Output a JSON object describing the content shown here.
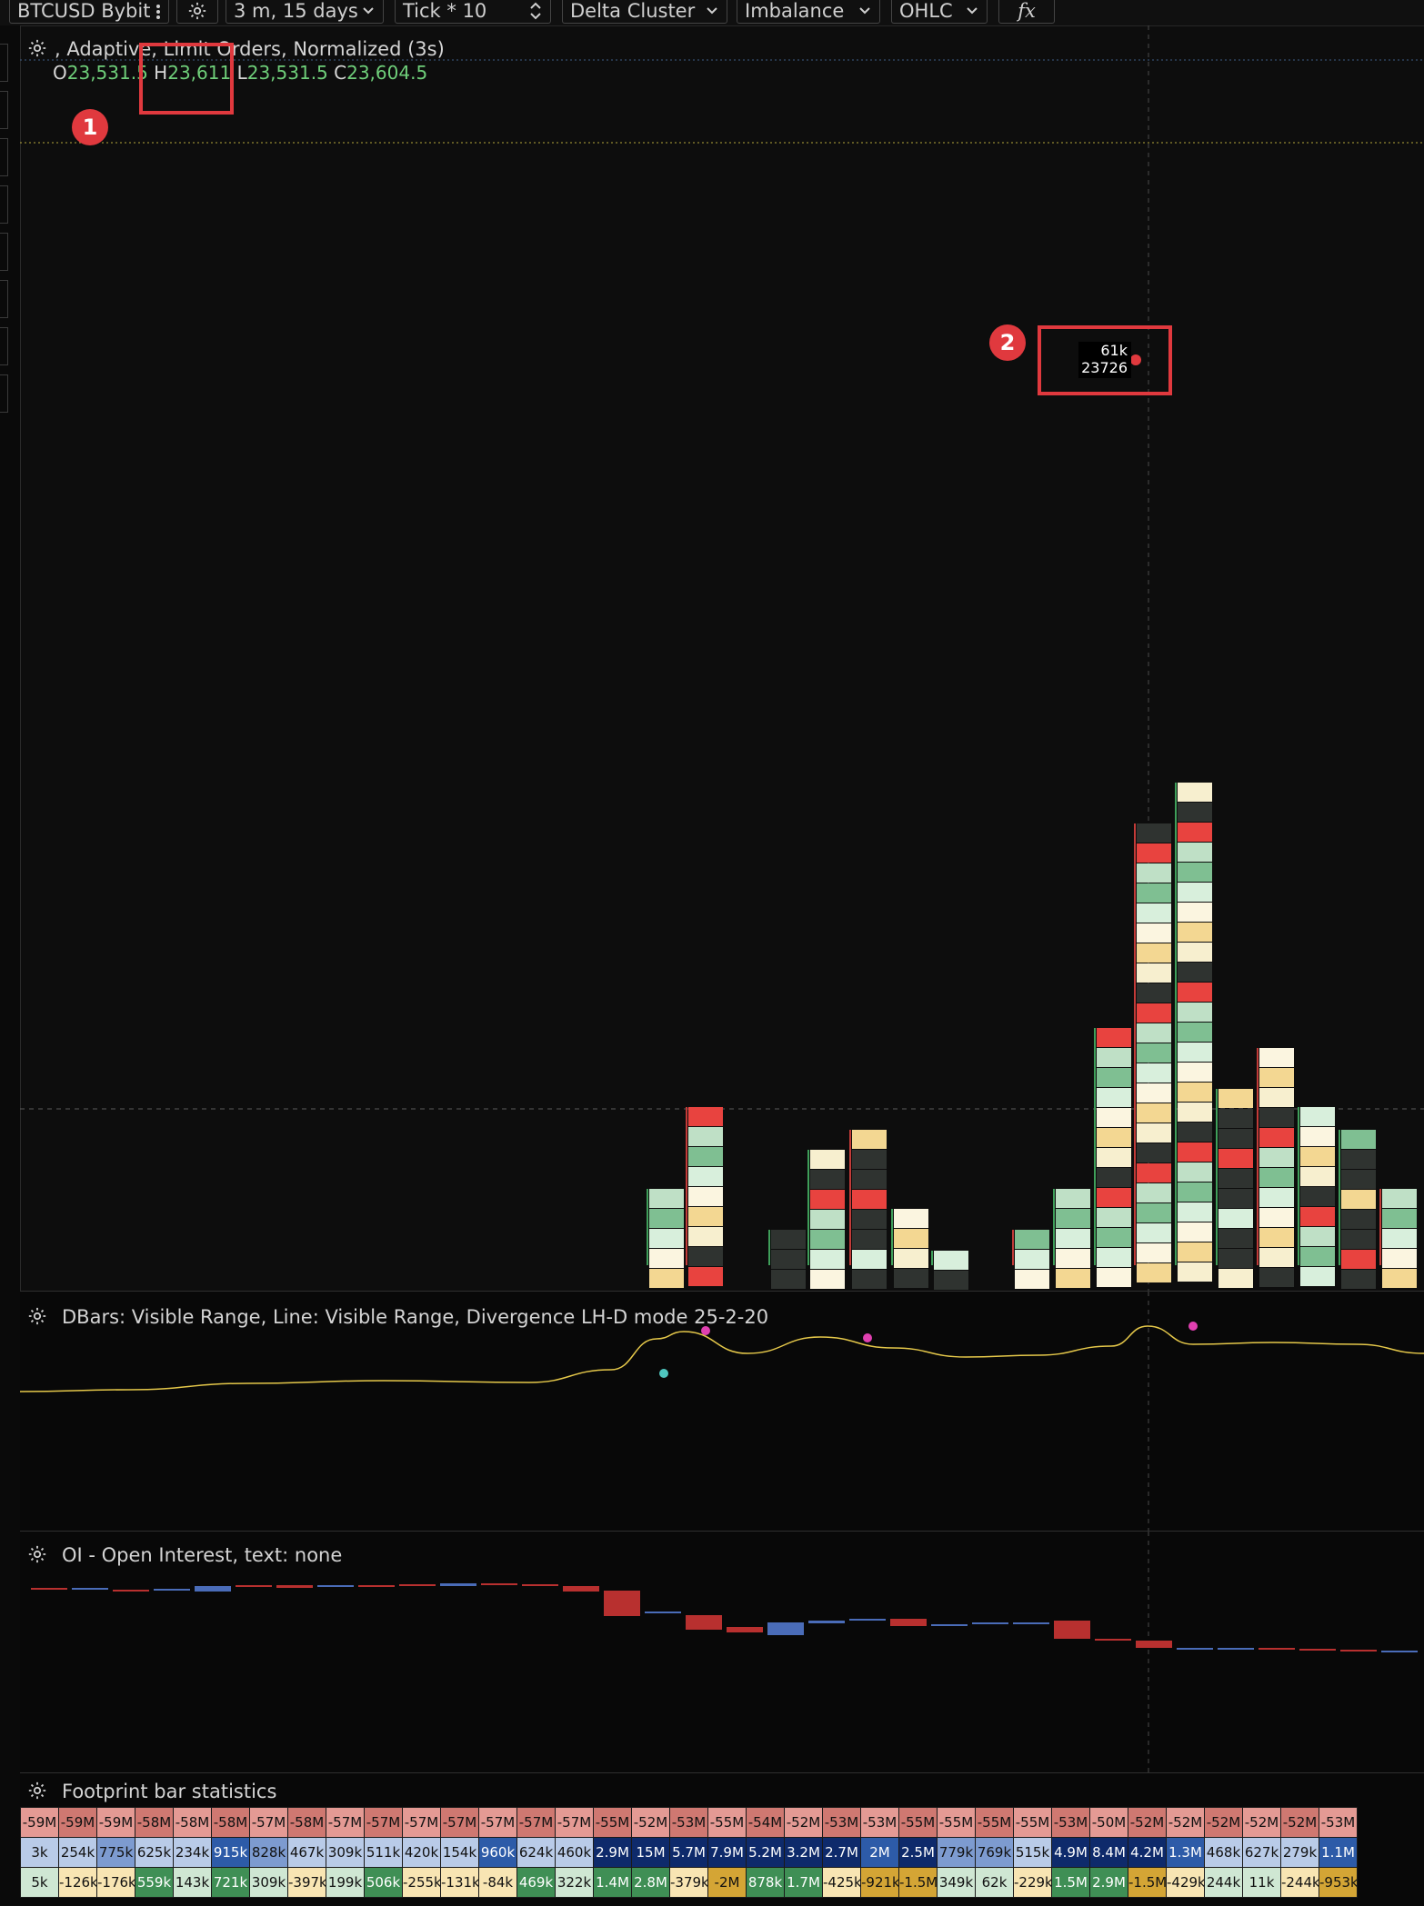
{
  "toolbar": {
    "symbol": "BTCUSD Bybit",
    "timeframe": "3 m, 15 days",
    "tick": "Tick * 10",
    "chart_type": "Delta Cluster",
    "mode": "Imbalance",
    "bar_style": "OHLC",
    "fx": "fx"
  },
  "main": {
    "title": ", Adaptive,  Limit Orders,  Normalized (3s)",
    "ohlc": {
      "o_label": "O",
      "o": "23,531.5",
      "h_label": "H",
      "h": "23,611",
      "l_label": "L",
      "l": "23,531.5",
      "c_label": "C",
      "c": "23,604.5"
    },
    "badge1": "1",
    "badge2": "2",
    "tooltip_volume": "61k",
    "tooltip_price": "23726"
  },
  "dbars": {
    "title": "DBars: Visible Range, Line: Visible Range, Divergence LH-D mode 25-2-20"
  },
  "oi": {
    "title": "OI - Open Interest, text: none"
  },
  "stats": {
    "title": "Footprint bar statistics",
    "rows": [
      [
        "-59M",
        "-59M",
        "-59M",
        "-58M",
        "-58M",
        "-58M",
        "-57M",
        "-58M",
        "-57M",
        "-57M",
        "-57M",
        "-57M",
        "-57M",
        "-57M",
        "-57M",
        "-55M",
        "-52M",
        "-53M",
        "-55M",
        "-54M",
        "-52M",
        "-53M",
        "-53M",
        "-55M",
        "-55M",
        "-55M",
        "-55M",
        "-53M",
        "-50M",
        "-52M",
        "-52M",
        "-52M",
        "-52M",
        "-52M",
        "-53M"
      ],
      [
        "3k",
        "254k",
        "775k",
        "625k",
        "234k",
        "915k",
        "828k",
        "467k",
        "309k",
        "511k",
        "420k",
        "154k",
        "960k",
        "624k",
        "460k",
        "2.9M",
        "15M",
        "5.7M",
        "7.9M",
        "5.2M",
        "3.2M",
        "2.7M",
        "2M",
        "2.5M",
        "779k",
        "769k",
        "515k",
        "4.9M",
        "8.4M",
        "4.2M",
        "1.3M",
        "468k",
        "627k",
        "279k",
        "1.1M"
      ],
      [
        "5k",
        "-126k",
        "-176k",
        "559k",
        "143k",
        "721k",
        "309k",
        "-397k",
        "199k",
        "506k",
        "-255k",
        "-131k",
        "-84k",
        "469k",
        "322k",
        "1.4M",
        "2.8M",
        "-379k",
        "-2M",
        "878k",
        "1.7M",
        "-425k",
        "-921k",
        "-1.5M",
        "349k",
        "62k",
        "-229k",
        "1.5M",
        "2.9M",
        "-1.5M",
        "-429k",
        "244k",
        "11k",
        "-244k",
        "-953k"
      ]
    ]
  },
  "colors": {
    "background": "#0d0d0d",
    "accent_red": "#e0393e",
    "price_green": "#6fcf7a",
    "dbars_line": "#e5c84a",
    "magenta_dot": "#e040b0",
    "cyan_dot": "#4fc7c0",
    "oi_down": "#b8302f",
    "oi_up": "#4a6cb8"
  }
}
